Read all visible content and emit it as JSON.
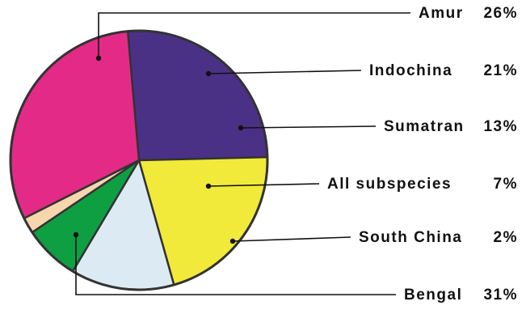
{
  "chart_data": {
    "type": "pie",
    "title": "",
    "slices": [
      {
        "label": "Amur",
        "pct": "26%",
        "value": 26,
        "color": "#4a3186"
      },
      {
        "label": "Indochina",
        "pct": "21%",
        "value": 21,
        "color": "#f2ea3a"
      },
      {
        "label": "Sumatran",
        "pct": "13%",
        "value": 13,
        "color": "#dcebf3"
      },
      {
        "label": "All subspecies",
        "pct": "7%",
        "value": 7,
        "color": "#0f9f43"
      },
      {
        "label": "South China",
        "pct": "2%",
        "value": 2,
        "color": "#f6d6ad"
      },
      {
        "label": "Bengal",
        "pct": "31%",
        "value": 31,
        "color": "#e42a87"
      }
    ],
    "outline_color": "#333333",
    "leader_line_color": "#111111"
  }
}
